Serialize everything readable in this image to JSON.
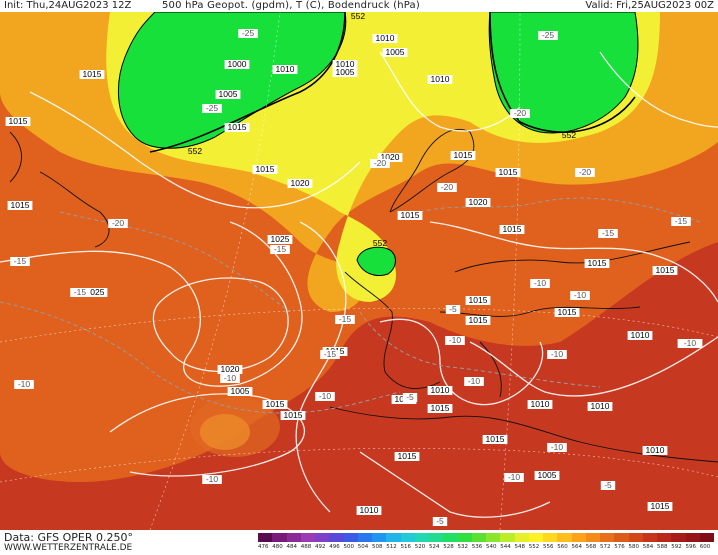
{
  "header": {
    "init": "Init: Thu,24AUG2023 12Z",
    "title": "500 hPa Geopot. (gpdm), T (C), Bodendruck (hPa)",
    "valid": "Valid: Fri,25AUG2023 00Z"
  },
  "footer": {
    "source": "Data: GFS OPER 0.250°",
    "url": "WWW.WETTERZENTRALE.DE"
  },
  "colorbar": {
    "ticks": [
      "476",
      "480",
      "484",
      "488",
      "492",
      "496",
      "500",
      "504",
      "508",
      "512",
      "516",
      "520",
      "524",
      "528",
      "532",
      "536",
      "540",
      "544",
      "548",
      "552",
      "556",
      "560",
      "564",
      "568",
      "572",
      "576",
      "580",
      "584",
      "588",
      "592",
      "596",
      "600"
    ],
    "colors": [
      "#5a0a50",
      "#7a1a7a",
      "#8c2a96",
      "#9c3cb4",
      "#8040c8",
      "#5a48d8",
      "#3c5ae6",
      "#2a78ee",
      "#2096f0",
      "#20b4e8",
      "#20cad6",
      "#20d8b4",
      "#20dc8c",
      "#20e064",
      "#30e040",
      "#5ae030",
      "#8ce628",
      "#bcee28",
      "#e6f028",
      "#fff028",
      "#ffd820",
      "#ffbe1c",
      "#ffa21a",
      "#f48a1a",
      "#e8701a",
      "#dc5a1a",
      "#d2461a",
      "#c8341a",
      "#ba2618",
      "#a81a18",
      "#941418",
      "#7e0e14"
    ]
  },
  "map": {
    "accent_colors": {
      "low_green": "#18e03a",
      "yellow": "#f3ef34",
      "orange": "#f2a51f",
      "red_orange": "#e0601e",
      "deep_red": "#c73820"
    },
    "isobar_labels": [
      "1015",
      "1010",
      "1000",
      "1005",
      "1010",
      "1005",
      "1010",
      "1005",
      "1010",
      "1015",
      "1015",
      "1015",
      "1015",
      "1020",
      "1015",
      "1020",
      "1015",
      "1020",
      "1025",
      "1015",
      "1015",
      "1015",
      "1015",
      "1025",
      "1020",
      "1015",
      "1015",
      "1015",
      "1015",
      "1015",
      "1015",
      "1010",
      "1010",
      "1010",
      "1015",
      "1015",
      "1015",
      "1005",
      "1010",
      "1015",
      "1015",
      "1015",
      "1010",
      "1010",
      "1005"
    ],
    "temp_labels": [
      "-25",
      "-25",
      "-25",
      "-20",
      "-20",
      "-20",
      "-20",
      "-20",
      "-15",
      "-15",
      "-15",
      "-15",
      "-15",
      "-15",
      "-15",
      "-10",
      "-10",
      "-10",
      "-10",
      "-10",
      "-10",
      "-10",
      "-10",
      "-10",
      "-10",
      "-10",
      "-10",
      "-5",
      "-5",
      "-5",
      "-5"
    ],
    "height_labels": [
      "552",
      "552",
      "552",
      "552"
    ]
  }
}
